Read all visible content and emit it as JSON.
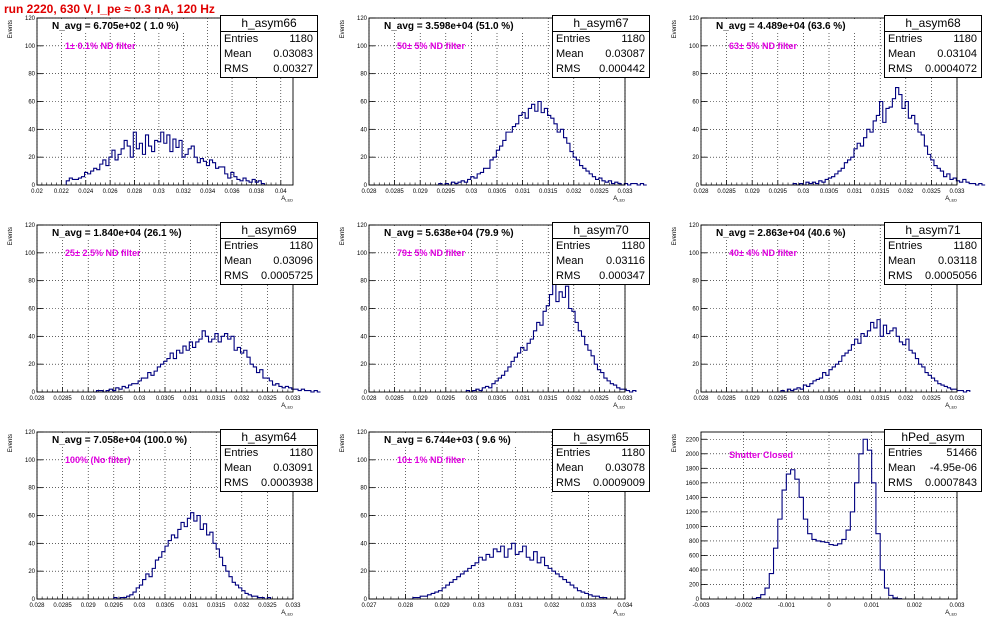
{
  "header": {
    "run_title": "run 2220,   630 V, I_pe ≈ 0.3 nA, 120 Hz"
  },
  "stat_labels": {
    "entries": "Entries",
    "mean": "Mean",
    "rms": "RMS"
  },
  "colors": {
    "hist": "#00007f",
    "filter_text": "#e000e0",
    "run_title": "#e00000",
    "grid": "#000000"
  },
  "y_axis_label": "Events",
  "x_axis_label": "A_LED",
  "chart_data": [
    {
      "type": "histogram",
      "name": "h_asym66",
      "stats": {
        "entries": "1180",
        "mean": "0.03083",
        "rms": "0.00327"
      },
      "navg": "N_avg = 6.705e+02 ( 1.0 %)",
      "filter": "1± 0.1% ND filter",
      "xlim": [
        0.02,
        0.041
      ],
      "ylim": [
        0,
        120
      ],
      "xticks": [
        "0.02",
        "0.022",
        "0.024",
        "0.026",
        "0.028",
        "0.03",
        "0.032",
        "0.034",
        "0.036",
        "0.038",
        "0.04"
      ],
      "yticks": [
        "0",
        "20",
        "40",
        "60",
        "80",
        "100",
        "120"
      ],
      "bins": {
        "start": 0.0224,
        "width": 0.00025,
        "counts": [
          3,
          5,
          4,
          4,
          5,
          6,
          9,
          8,
          10,
          12,
          11,
          15,
          18,
          14,
          20,
          25,
          18,
          22,
          26,
          32,
          28,
          20,
          38,
          26,
          30,
          22,
          36,
          28,
          24,
          32,
          31,
          38,
          30,
          36,
          24,
          33,
          27,
          32,
          20,
          22,
          26,
          28,
          20,
          16,
          19,
          17,
          14,
          18,
          16,
          12,
          13,
          13,
          8,
          5,
          9,
          6,
          4,
          3,
          5,
          3,
          2,
          4,
          2,
          3,
          1
        ]
      }
    },
    {
      "type": "histogram",
      "name": "h_asym67",
      "stats": {
        "entries": "1180",
        "mean": "0.03087",
        "rms": "0.000442"
      },
      "navg": "N_avg = 3.598e+04 (51.0 %)",
      "filter": "50± 5% ND filter",
      "xlim": [
        0.028,
        0.033
      ],
      "ylim": [
        0,
        120
      ],
      "xticks": [
        "0.028",
        "0.0285",
        "0.029",
        "0.0295",
        "0.03",
        "0.0305",
        "0.031",
        "0.0315",
        "0.032",
        "0.0325",
        "0.033"
      ],
      "yticks": [
        "0",
        "20",
        "40",
        "60",
        "80",
        "100",
        "120"
      ],
      "bins": {
        "start": 0.0293,
        "width": 6.25e-05,
        "counts": [
          0,
          1,
          0,
          1,
          0,
          2,
          1,
          2,
          3,
          2,
          4,
          6,
          5,
          8,
          9,
          12,
          12,
          18,
          20,
          25,
          28,
          32,
          38,
          38,
          42,
          44,
          50,
          52,
          48,
          55,
          58,
          53,
          60,
          52,
          55,
          50,
          48,
          44,
          38,
          40,
          34,
          30,
          24,
          20,
          18,
          14,
          12,
          10,
          8,
          6,
          4,
          5,
          3,
          2,
          3,
          1,
          2,
          1,
          0,
          1,
          0,
          1,
          1,
          0,
          1,
          0
        ]
      }
    },
    {
      "type": "histogram",
      "name": "h_asym68",
      "stats": {
        "entries": "1180",
        "mean": "0.03104",
        "rms": "0.0004072"
      },
      "navg": "N_avg = 4.489e+04 (63.6 %)",
      "filter": "63± 5% ND filter",
      "xlim": [
        0.028,
        0.033
      ],
      "ylim": [
        0,
        120
      ],
      "xticks": [
        "0.028",
        "0.0285",
        "0.029",
        "0.0295",
        "0.03",
        "0.0305",
        "0.031",
        "0.0315",
        "0.032",
        "0.0325",
        "0.033"
      ],
      "yticks": [
        "0",
        "20",
        "40",
        "60",
        "80",
        "100",
        "120"
      ],
      "bins": {
        "start": 0.0298,
        "width": 6.25e-05,
        "counts": [
          1,
          0,
          1,
          0,
          2,
          1,
          2,
          1,
          3,
          2,
          4,
          5,
          6,
          8,
          10,
          12,
          16,
          18,
          20,
          26,
          30,
          28,
          34,
          40,
          38,
          46,
          50,
          60,
          45,
          55,
          56,
          62,
          70,
          65,
          55,
          60,
          48,
          50,
          44,
          38,
          36,
          28,
          22,
          18,
          14,
          12,
          10,
          6,
          8,
          4,
          5,
          3,
          2,
          4,
          2,
          1,
          1,
          0,
          1,
          0
        ]
      }
    },
    {
      "type": "histogram",
      "name": "h_asym69",
      "stats": {
        "entries": "1180",
        "mean": "0.03096",
        "rms": "0.0005725"
      },
      "navg": "N_avg = 1.840e+04 (26.1 %)",
      "filter": "25± 2.5% ND filter",
      "xlim": [
        0.028,
        0.033
      ],
      "ylim": [
        0,
        120
      ],
      "xticks": [
        "0.028",
        "0.0285",
        "0.029",
        "0.0295",
        "0.03",
        "0.0305",
        "0.031",
        "0.0315",
        "0.032",
        "0.0325",
        "0.033"
      ],
      "yticks": [
        "0",
        "20",
        "40",
        "60",
        "80",
        "100",
        "120"
      ],
      "bins": {
        "start": 0.0291,
        "width": 6.25e-05,
        "counts": [
          0,
          1,
          1,
          0,
          1,
          2,
          1,
          3,
          2,
          4,
          3,
          5,
          6,
          6,
          8,
          10,
          10,
          14,
          12,
          15,
          18,
          20,
          22,
          24,
          28,
          24,
          30,
          28,
          33,
          30,
          36,
          32,
          36,
          38,
          44,
          40,
          36,
          38,
          42,
          36,
          40,
          42,
          38,
          40,
          30,
          32,
          28,
          30,
          25,
          20,
          18,
          14,
          16,
          10,
          10,
          8,
          5,
          6,
          4,
          3,
          4,
          3,
          2,
          2,
          1,
          2,
          1,
          1,
          0,
          1,
          0
        ]
      }
    },
    {
      "type": "histogram",
      "name": "h_asym70",
      "stats": {
        "entries": "1180",
        "mean": "0.03116",
        "rms": "0.000347"
      },
      "navg": "N_avg = 5.638e+04 (79.9 %)",
      "filter": "79± 5% ND filter",
      "xlim": [
        0.028,
        0.033
      ],
      "ylim": [
        0,
        120
      ],
      "xticks": [
        "0.028",
        "0.0285",
        "0.029",
        "0.0295",
        "0.03",
        "0.0305",
        "0.031",
        "0.0315",
        "0.032",
        "0.0325",
        "0.033"
      ],
      "yticks": [
        "0",
        "20",
        "40",
        "60",
        "80",
        "100",
        "120"
      ],
      "bins": {
        "start": 0.0299,
        "width": 6.25e-05,
        "counts": [
          1,
          0,
          1,
          2,
          1,
          3,
          4,
          3,
          6,
          8,
          10,
          12,
          15,
          18,
          22,
          25,
          28,
          32,
          30,
          35,
          38,
          44,
          50,
          48,
          58,
          62,
          70,
          78,
          65,
          72,
          68,
          76,
          60,
          58,
          50,
          44,
          40,
          34,
          30,
          26,
          20,
          16,
          14,
          10,
          8,
          6,
          5,
          3,
          2,
          2,
          1,
          0,
          1
        ]
      }
    },
    {
      "type": "histogram",
      "name": "h_asym71",
      "stats": {
        "entries": "1180",
        "mean": "0.03118",
        "rms": "0.0005056"
      },
      "navg": "N_avg = 2.863e+04 (40.6 %)",
      "filter": "40± 4% ND filter",
      "xlim": [
        0.028,
        0.033
      ],
      "ylim": [
        0,
        120
      ],
      "xticks": [
        "0.028",
        "0.0285",
        "0.029",
        "0.0295",
        "0.03",
        "0.0305",
        "0.031",
        "0.0315",
        "0.032",
        "0.0325",
        "0.033"
      ],
      "yticks": [
        "0",
        "20",
        "40",
        "60",
        "80",
        "100",
        "120"
      ],
      "bins": {
        "start": 0.0295,
        "width": 6.25e-05,
        "counts": [
          0,
          1,
          0,
          2,
          1,
          2,
          3,
          2,
          5,
          4,
          6,
          8,
          9,
          10,
          14,
          12,
          16,
          18,
          20,
          22,
          26,
          28,
          30,
          34,
          38,
          35,
          42,
          40,
          44,
          50,
          46,
          52,
          40,
          48,
          42,
          44,
          46,
          40,
          36,
          34,
          38,
          30,
          28,
          24,
          20,
          18,
          14,
          12,
          10,
          8,
          6,
          5,
          4,
          3,
          2,
          2,
          1,
          1,
          0,
          1
        ]
      }
    },
    {
      "type": "histogram",
      "name": "h_asym64",
      "stats": {
        "entries": "1180",
        "mean": "0.03091",
        "rms": "0.0003938"
      },
      "navg": "N_avg = 7.058e+04 (100.0 %)",
      "filter": "100% (No filter)",
      "xlim": [
        0.028,
        0.033
      ],
      "ylim": [
        0,
        120
      ],
      "xticks": [
        "0.028",
        "0.0285",
        "0.029",
        "0.0295",
        "0.03",
        "0.0305",
        "0.031",
        "0.0315",
        "0.032",
        "0.0325",
        "0.033"
      ],
      "yticks": [
        "0",
        "20",
        "40",
        "60",
        "80",
        "100",
        "120"
      ],
      "bins": {
        "start": 0.0295,
        "width": 6.25e-05,
        "counts": [
          1,
          0,
          1,
          1,
          2,
          3,
          5,
          8,
          10,
          14,
          18,
          16,
          22,
          28,
          30,
          34,
          38,
          42,
          46,
          44,
          50,
          55,
          52,
          58,
          62,
          56,
          60,
          50,
          54,
          46,
          48,
          40,
          36,
          30,
          24,
          20,
          16,
          12,
          10,
          8,
          6,
          4,
          3,
          2,
          2,
          1,
          1,
          0,
          1
        ]
      }
    },
    {
      "type": "histogram",
      "name": "h_asym65",
      "stats": {
        "entries": "1180",
        "mean": "0.03078",
        "rms": "0.0009009"
      },
      "navg": "N_avg = 6.744e+03 ( 9.6 %)",
      "filter": "10± 1% ND filter",
      "xlim": [
        0.027,
        0.034
      ],
      "ylim": [
        0,
        120
      ],
      "xticks": [
        "0.027",
        "0.028",
        "0.029",
        "0.03",
        "0.031",
        "0.032",
        "0.033",
        "0.034"
      ],
      "yticks": [
        "0",
        "20",
        "40",
        "60",
        "80",
        "100",
        "120"
      ],
      "bins": {
        "start": 0.0281,
        "width": 0.0001,
        "counts": [
          0,
          1,
          1,
          2,
          2,
          3,
          4,
          5,
          6,
          8,
          10,
          12,
          14,
          16,
          18,
          20,
          22,
          24,
          26,
          30,
          28,
          32,
          30,
          36,
          34,
          38,
          30,
          36,
          40,
          32,
          34,
          38,
          30,
          28,
          34,
          26,
          30,
          24,
          22,
          20,
          18,
          16,
          14,
          12,
          10,
          8,
          6,
          5,
          4,
          3,
          2,
          2,
          1,
          1
        ]
      }
    },
    {
      "type": "histogram",
      "name": "hPed_asym",
      "stats": {
        "entries": "51466",
        "mean": "-4.95e-06",
        "rms": "0.0007843"
      },
      "navg": "",
      "filter": "Shutter Closed",
      "xlim": [
        -0.003,
        0.003
      ],
      "ylim": [
        0,
        2300
      ],
      "xticks": [
        "-0.003",
        "-0.002",
        "-0.001",
        "0",
        "0.001",
        "0.002",
        "0.003"
      ],
      "yticks": [
        "0",
        "200",
        "400",
        "600",
        "800",
        "1000",
        "1200",
        "1400",
        "1600",
        "1800",
        "2000",
        "2200"
      ],
      "bins": {
        "start": -0.0018,
        "width": 0.0001,
        "counts": [
          5,
          20,
          60,
          150,
          350,
          700,
          1100,
          1500,
          1720,
          1780,
          1650,
          1400,
          1100,
          900,
          820,
          800,
          790,
          780,
          750,
          740,
          760,
          820,
          950,
          1200,
          1600,
          2000,
          2200,
          2050,
          1600,
          900,
          400,
          150,
          50,
          15,
          5
        ]
      }
    }
  ]
}
